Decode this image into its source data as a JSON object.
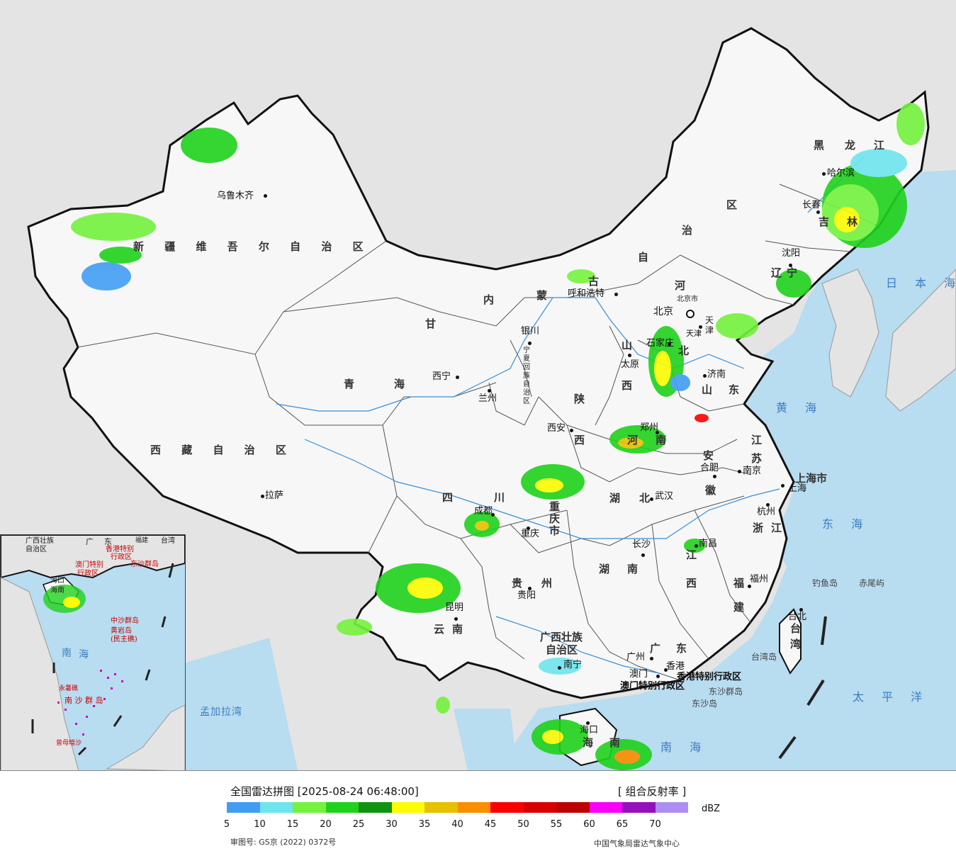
{
  "legend": {
    "title": "全国雷达拼图 [2025-08-24 06:48:00]",
    "product": "[ 组合反射率 ]",
    "unit": "dBZ",
    "ticks": [
      "5",
      "10",
      "15",
      "20",
      "25",
      "30",
      "35",
      "40",
      "45",
      "50",
      "55",
      "60",
      "65",
      "70"
    ],
    "colors": [
      "#419df3",
      "#6ee5ec",
      "#74f23d",
      "#1fd21b",
      "#109312",
      "#fcfc03",
      "#e5c100",
      "#fb8d00",
      "#fc0000",
      "#d70000",
      "#bd0000",
      "#f800f8",
      "#9510bd",
      "#ae8df0"
    ],
    "review_number": "审图号: GS京 (2022) 0372号",
    "source": "中国气象局雷达气象中心"
  },
  "colors": {
    "sea": "#b8dcf0",
    "land_foreign": "#e4e4e4",
    "land_china": "#f7f7f7",
    "border": "#111111"
  },
  "provinces": [
    {
      "name": "新 疆 维 吾 尔 自 治 区"
    },
    {
      "name": "西 藏 自 治 区"
    },
    {
      "name": "青"
    },
    {
      "name": "海"
    },
    {
      "name": "甘"
    },
    {
      "name": "内"
    },
    {
      "name": "蒙"
    },
    {
      "name": "古"
    },
    {
      "name": "自"
    },
    {
      "name": "治"
    },
    {
      "name": "区"
    },
    {
      "name": "黑"
    },
    {
      "name": "龙"
    },
    {
      "name": "江"
    },
    {
      "name": "吉"
    },
    {
      "name": "林"
    },
    {
      "name": "辽"
    },
    {
      "name": "宁"
    },
    {
      "name": "河"
    },
    {
      "name": "北"
    },
    {
      "name": "山"
    },
    {
      "name": "西"
    },
    {
      "name": "山"
    },
    {
      "name": "东"
    },
    {
      "name": "陕"
    },
    {
      "name": "西"
    },
    {
      "name": "河"
    },
    {
      "name": "南"
    },
    {
      "name": "江"
    },
    {
      "name": "苏"
    },
    {
      "name": "安"
    },
    {
      "name": "徽"
    },
    {
      "name": "上海市"
    },
    {
      "name": "浙"
    },
    {
      "name": "江"
    },
    {
      "name": "湖"
    },
    {
      "name": "北"
    },
    {
      "name": "湖"
    },
    {
      "name": "南"
    },
    {
      "name": "江"
    },
    {
      "name": "西"
    },
    {
      "name": "福"
    },
    {
      "name": "建"
    },
    {
      "name": "四"
    },
    {
      "name": "川"
    },
    {
      "name": "重"
    },
    {
      "name": "庆"
    },
    {
      "name": "市"
    },
    {
      "name": "贵"
    },
    {
      "name": "州"
    },
    {
      "name": "云"
    },
    {
      "name": "南"
    },
    {
      "name": "广西壮族"
    },
    {
      "name": "自治区"
    },
    {
      "name": "广"
    },
    {
      "name": "东"
    },
    {
      "name": "台"
    },
    {
      "name": "湾"
    },
    {
      "name": "海"
    },
    {
      "name": "南"
    },
    {
      "name": "宁"
    },
    {
      "name": "夏"
    },
    {
      "name": "回"
    },
    {
      "name": "族"
    },
    {
      "name": "自"
    },
    {
      "name": "治"
    },
    {
      "name": "区"
    },
    {
      "name": "天"
    },
    {
      "name": "津"
    },
    {
      "name": "北京市"
    }
  ],
  "cities": [
    {
      "name": "乌鲁木齐"
    },
    {
      "name": "拉萨"
    },
    {
      "name": "西宁"
    },
    {
      "name": "兰州"
    },
    {
      "name": "银川"
    },
    {
      "name": "呼和浩特"
    },
    {
      "name": "哈尔滨"
    },
    {
      "name": "长春"
    },
    {
      "name": "沈阳"
    },
    {
      "name": "北京"
    },
    {
      "name": "天津"
    },
    {
      "name": "石家庄"
    },
    {
      "name": "太原"
    },
    {
      "name": "济南"
    },
    {
      "name": "西安"
    },
    {
      "name": "郑州"
    },
    {
      "name": "合肥"
    },
    {
      "name": "南京"
    },
    {
      "name": "上海"
    },
    {
      "name": "杭州"
    },
    {
      "name": "武汉"
    },
    {
      "name": "成都"
    },
    {
      "name": "重庆"
    },
    {
      "name": "长沙"
    },
    {
      "name": "南昌"
    },
    {
      "name": "福州"
    },
    {
      "name": "贵阳"
    },
    {
      "name": "昆明"
    },
    {
      "name": "南宁"
    },
    {
      "name": "广州"
    },
    {
      "name": "澳门"
    },
    {
      "name": "香港"
    },
    {
      "name": "台北"
    },
    {
      "name": "海口"
    }
  ],
  "special": [
    {
      "name": "香港特别行政区"
    },
    {
      "name": "澳门特别行政区"
    }
  ],
  "seas": [
    {
      "name": "日 本 海"
    },
    {
      "name": "黄 海"
    },
    {
      "name": "东 海"
    },
    {
      "name": "太 平 洋"
    },
    {
      "name": "南 海"
    },
    {
      "name": "孟加拉湾"
    }
  ],
  "islands": [
    {
      "name": "钓鱼岛"
    },
    {
      "name": "赤尾屿"
    },
    {
      "name": "台湾岛"
    },
    {
      "name": "东沙群岛"
    },
    {
      "name": "东沙岛"
    }
  ],
  "inset": {
    "labels": [
      {
        "name": "广西壮族"
      },
      {
        "name": "自治区"
      },
      {
        "name": "广"
      },
      {
        "name": "东"
      },
      {
        "name": "福建"
      },
      {
        "name": "台湾"
      },
      {
        "name": "香港特别"
      },
      {
        "name": "行政区"
      },
      {
        "name": "澳门特别"
      },
      {
        "name": "行政区"
      },
      {
        "name": "东沙群岛"
      },
      {
        "name": "海口"
      },
      {
        "name": "海南"
      },
      {
        "name": "中沙群岛"
      },
      {
        "name": "黄岩岛"
      },
      {
        "name": "(民主礁)"
      },
      {
        "name": "南"
      },
      {
        "name": "海"
      },
      {
        "name": "永暑礁"
      },
      {
        "name": "南 沙 群 岛"
      },
      {
        "name": "曾母暗沙"
      }
    ]
  }
}
